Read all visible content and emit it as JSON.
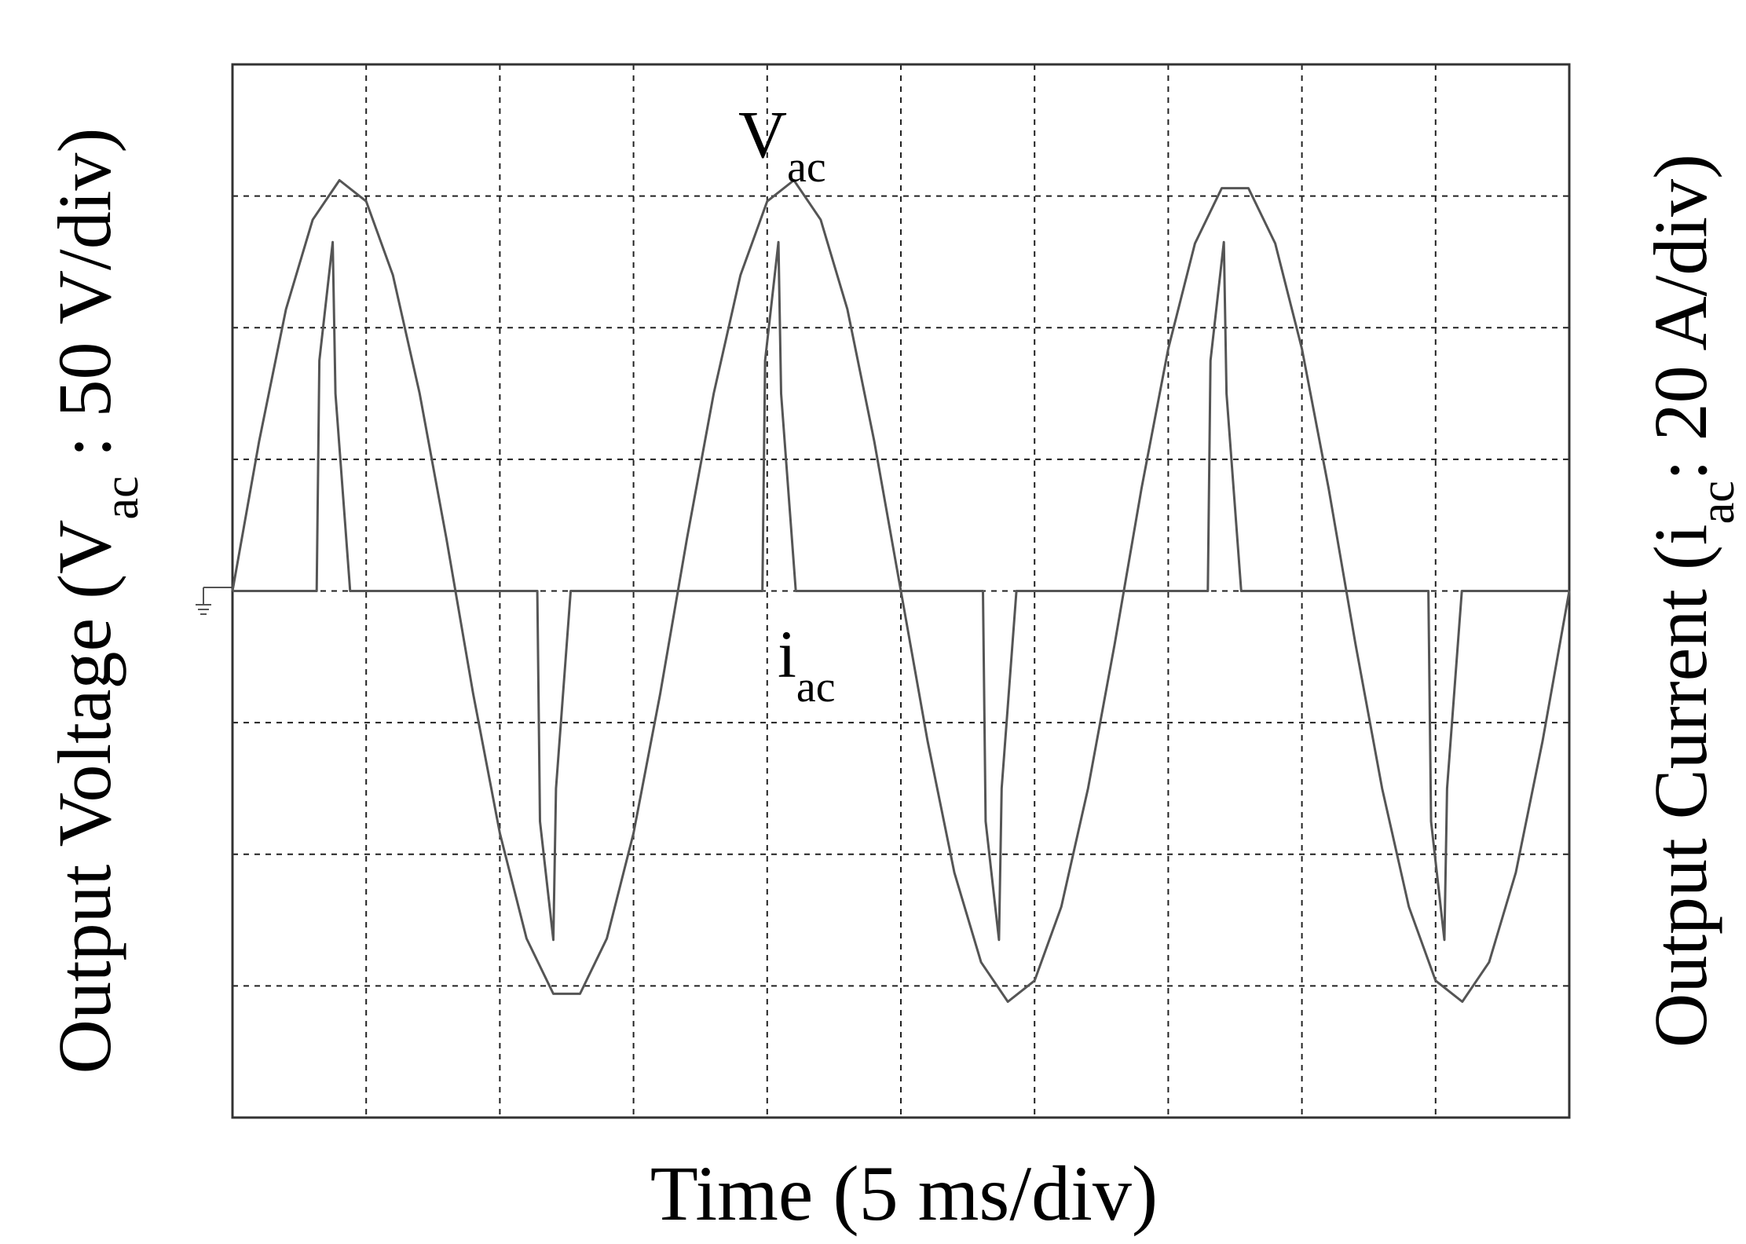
{
  "chart_data": {
    "type": "line",
    "x_label": "Time (5 ms/div)",
    "y_label": [
      "Output Voltage (V",
      "ac",
      " : 50 V/div)"
    ],
    "y2_label": [
      "Output Current (i",
      "ac",
      ": 20 A/div)"
    ],
    "xlim": [
      0,
      50
    ],
    "xticks": [
      0,
      5,
      10,
      15,
      20,
      25,
      30,
      35,
      40,
      45,
      50
    ],
    "ylim": [
      -200,
      200
    ],
    "yticks": [
      -200,
      -150,
      -100,
      -50,
      0,
      50,
      100,
      150,
      200
    ],
    "y2lim": [
      -80,
      80
    ],
    "grid": true,
    "series": [
      {
        "label": [
          "V",
          "ac"
        ],
        "color": "#555555",
        "x": [
          0,
          1,
          2,
          3,
          4,
          5,
          6,
          7,
          8,
          9,
          10,
          11,
          12,
          13,
          14,
          15,
          16,
          17,
          18,
          19,
          20,
          21,
          22,
          23,
          24,
          25,
          26,
          27,
          28,
          29,
          30,
          31,
          32,
          33,
          34,
          35,
          36,
          37,
          38,
          39,
          40,
          41,
          42,
          43,
          44,
          45,
          46,
          47,
          48,
          49,
          50
        ],
        "values": [
          0,
          57,
          107,
          141,
          156,
          148,
          120,
          75,
          20,
          -39,
          -92,
          -132,
          -153,
          -153,
          -132,
          -92,
          -39,
          20,
          75,
          120,
          148,
          156,
          141,
          107,
          57,
          0,
          -57,
          -107,
          -141,
          -156,
          -148,
          -120,
          -75,
          -20,
          39,
          92,
          132,
          153,
          153,
          132,
          92,
          39,
          -20,
          -75,
          -120,
          -148,
          -156,
          -141,
          -107,
          -57,
          0
        ]
      },
      {
        "label": [
          "i",
          "ac"
        ],
        "color": "#555555",
        "axis": "y2",
        "x": [
          0,
          3.15,
          3.25,
          3.75,
          3.85,
          4.4,
          11.4,
          11.5,
          12.0,
          12.1,
          12.65,
          19.82,
          19.92,
          20.42,
          20.52,
          21.07,
          28.07,
          28.17,
          28.67,
          28.77,
          29.32,
          36.48,
          36.58,
          37.08,
          37.18,
          37.73,
          44.73,
          44.83,
          45.33,
          45.43,
          45.98,
          50
        ],
        "values": [
          0,
          0,
          35,
          53,
          30,
          0,
          0,
          -35,
          -53,
          -30,
          0,
          0,
          35,
          53,
          30,
          0,
          0,
          -35,
          -53,
          -30,
          0,
          0,
          35,
          53,
          30,
          0,
          0,
          -35,
          -53,
          -30,
          0,
          0
        ]
      }
    ]
  }
}
